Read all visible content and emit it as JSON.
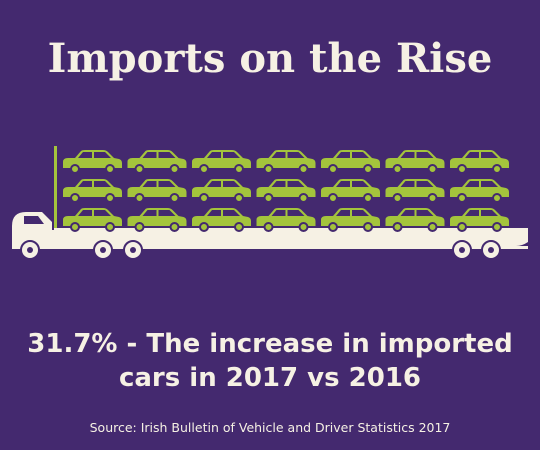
{
  "title": "Imports on the Rise",
  "headline": {
    "lines": [
      "31.7% - The increase in imported",
      "cars in 2017 vs 2016"
    ]
  },
  "source": "Source: Irish Bulletin of Vehicle and Driver Statistics 2017"
}
